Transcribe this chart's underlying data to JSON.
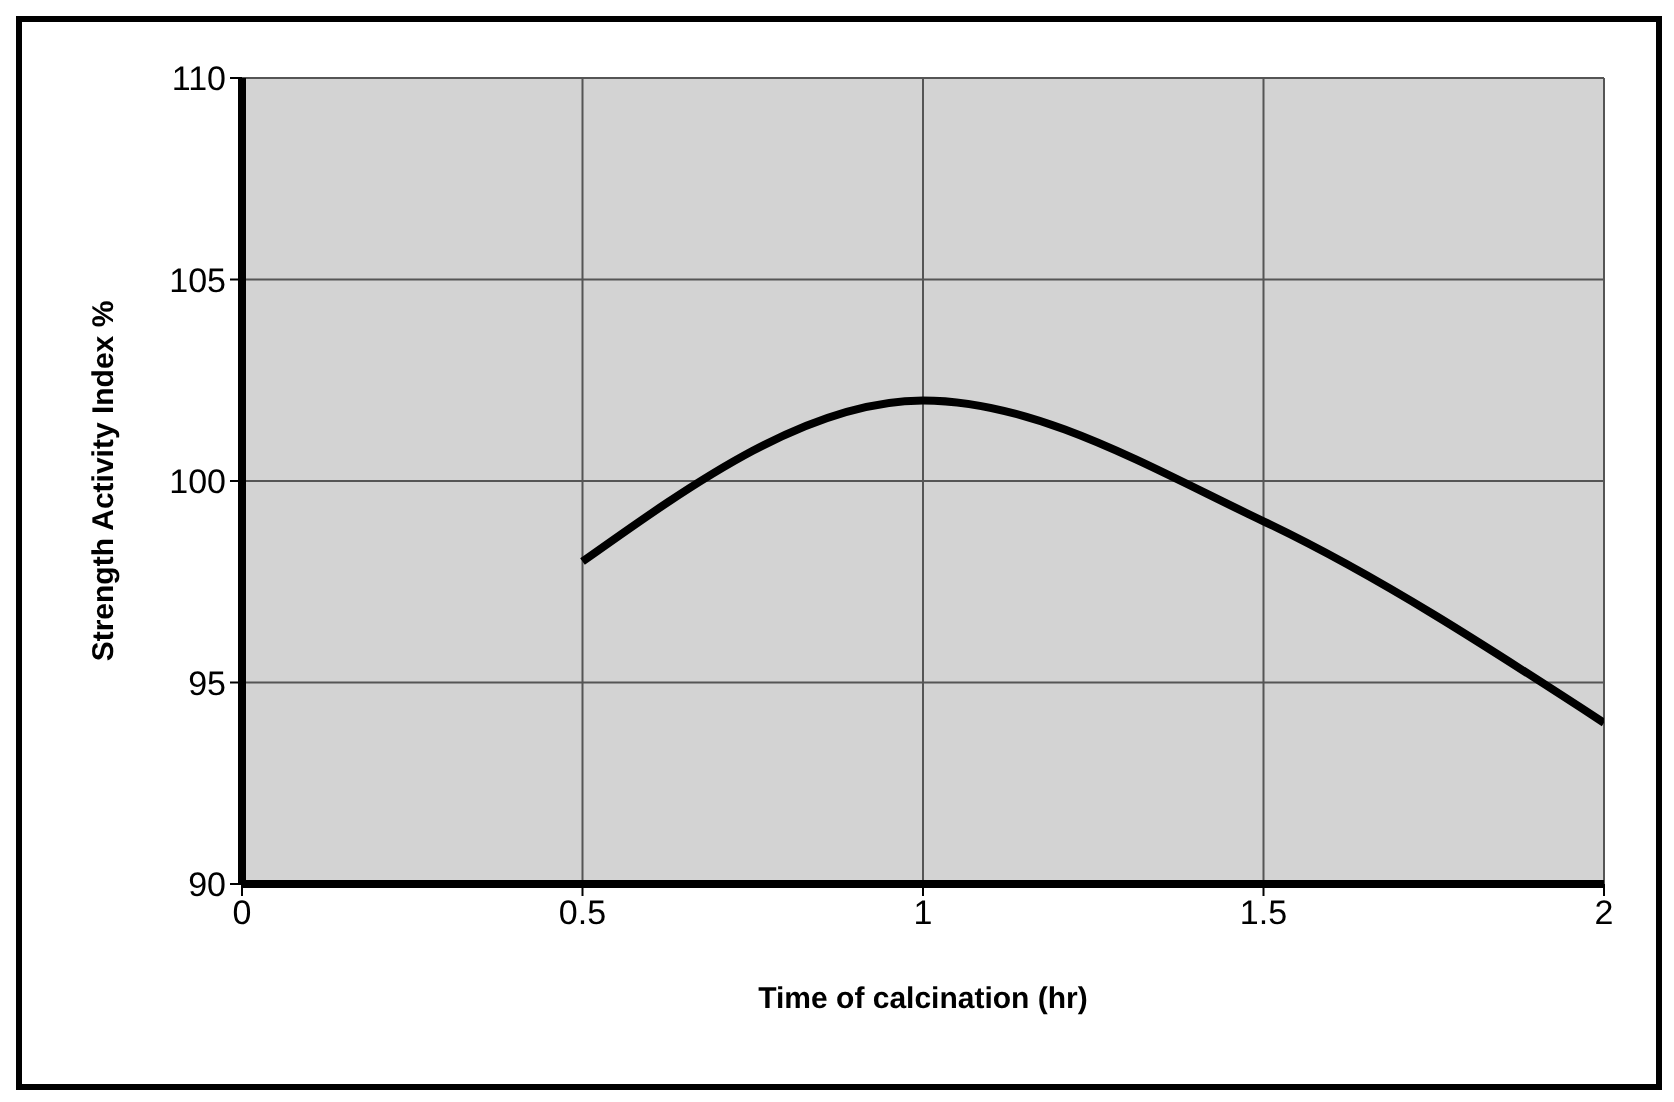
{
  "chart_data": {
    "type": "line",
    "xlabel": "Time of calcination (hr)",
    "ylabel": "Strength Activity Index %",
    "x": [
      0.5,
      1,
      1.5,
      2
    ],
    "series": [
      {
        "color": "#000000",
        "values": [
          98,
          102,
          99,
          94
        ]
      }
    ],
    "xlim": [
      0,
      2
    ],
    "xticks": [
      0,
      0.5,
      1,
      1.5,
      2
    ],
    "ylim": [
      90,
      110
    ],
    "yticks": [
      90,
      95,
      100,
      105,
      110
    ],
    "grid": true,
    "legend": false,
    "marker": "none",
    "line_style": "solid"
  }
}
